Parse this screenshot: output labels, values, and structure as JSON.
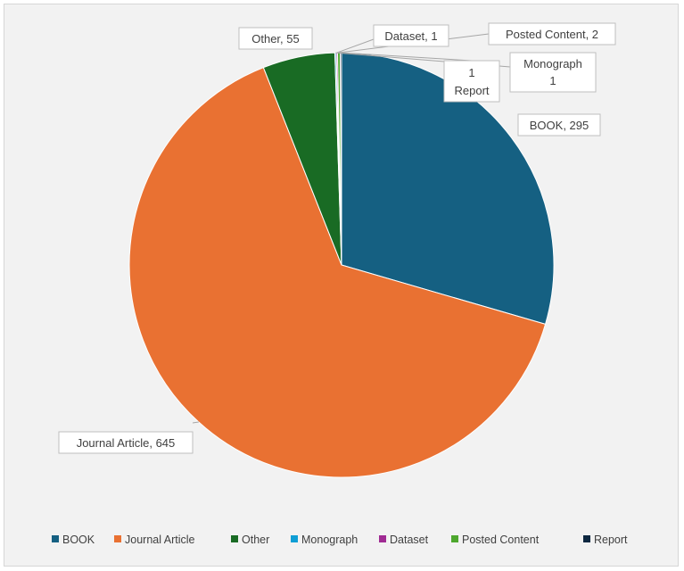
{
  "chart_data": {
    "type": "pie",
    "categories": [
      "BOOK",
      "Journal Article",
      "Other",
      "Monograph",
      "Dataset",
      "Posted Content",
      "Report"
    ],
    "values": [
      295,
      645,
      55,
      1,
      1,
      2,
      1
    ],
    "colors": [
      "#156082",
      "#e97132",
      "#196b24",
      "#0f9ed5",
      "#a02b93",
      "#4ea72e",
      "#0e2841"
    ],
    "legend_position": "bottom",
    "data_labels": {
      "book": "BOOK, 295",
      "journal": "Journal Article, 645",
      "other": "Other, 55",
      "dataset": "Dataset, 1",
      "posted": "Posted Content, 2",
      "monograph_line1": "Monograph",
      "monograph_line2": "1",
      "report_line1": "1",
      "report_line2": "Report"
    }
  }
}
